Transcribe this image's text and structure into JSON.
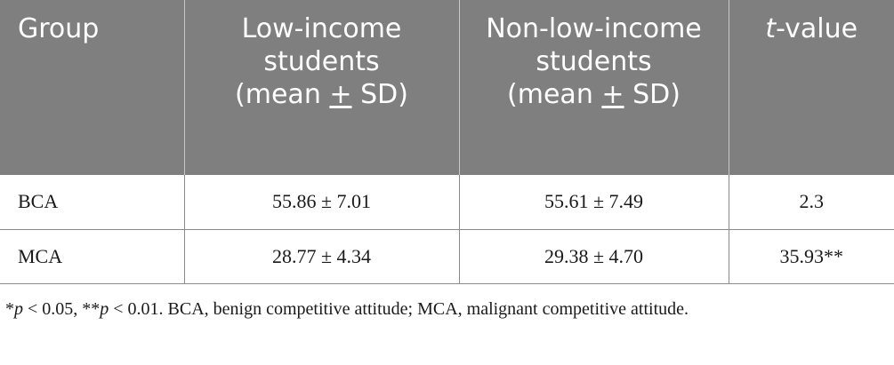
{
  "table": {
    "headers": [
      {
        "line1": "Group"
      },
      {
        "line1": "Low-income students",
        "line2": "(mean",
        "pm": "+",
        "line2b": "SD)"
      },
      {
        "line1": "Non-low-income students",
        "line2": "(mean",
        "pm": "+",
        "line2b": "SD)"
      },
      {
        "italic": "t",
        "rest": "-value"
      }
    ],
    "rows": [
      {
        "group": "BCA",
        "low_income": "55.86 ± 7.01",
        "non_low_income": "55.61 ± 7.49",
        "t_value": "2.3"
      },
      {
        "group": "MCA",
        "low_income": "28.77 ± 4.34",
        "non_low_income": "29.38 ± 4.70",
        "t_value": "35.93**"
      }
    ]
  },
  "footnote": {
    "star1": "*",
    "p1": "p",
    "txt1": " < 0.05, **",
    "p2": "p",
    "txt2": " < 0.01. BCA, benign competitive attitude; MCA, malignant competitive attitude."
  }
}
